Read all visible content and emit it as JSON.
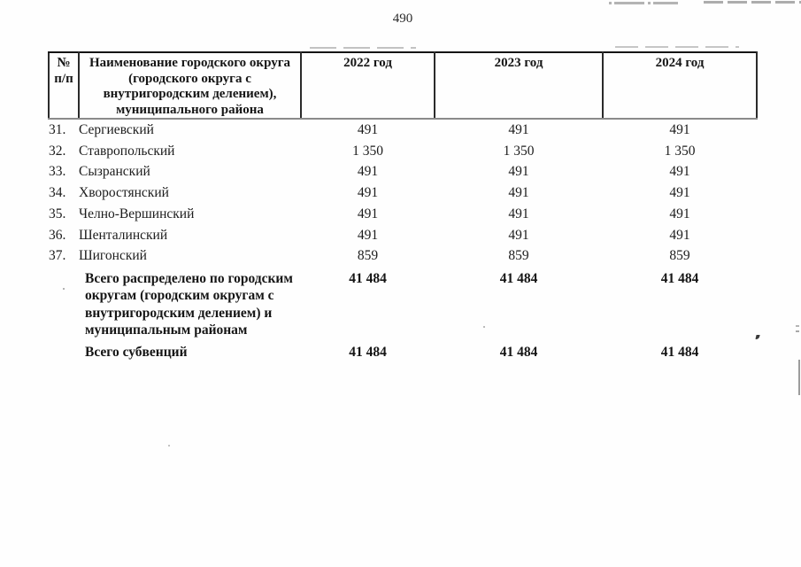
{
  "page_number": "490",
  "colors": {
    "ink": "#1c1c1c",
    "table_border": "#2b2b2b",
    "header_underline": "#8a8a8a",
    "scan_artifact_gray": "#b0b0b0"
  },
  "table": {
    "header": {
      "col_num": "№\nп/п",
      "col_name": "Наименование городского округа\n(городского округа с\nвнутригородским делением),\nмуниципального района",
      "col_2022": "2022 год",
      "col_2023": "2023 год",
      "col_2024": "2024 год"
    },
    "rows": [
      {
        "num": "31.",
        "name": "Сергиевский",
        "y2022": "491",
        "y2023": "491",
        "y2024": "491"
      },
      {
        "num": "32.",
        "name": "Ставропольский",
        "y2022": "1 350",
        "y2023": "1 350",
        "y2024": "1 350"
      },
      {
        "num": "33.",
        "name": "Сызранский",
        "y2022": "491",
        "y2023": "491",
        "y2024": "491"
      },
      {
        "num": "34.",
        "name": "Хворостянский",
        "y2022": "491",
        "y2023": "491",
        "y2024": "491"
      },
      {
        "num": "35.",
        "name": "Челно-Вершинский",
        "y2022": "491",
        "y2023": "491",
        "y2024": "491"
      },
      {
        "num": "36.",
        "name": "Шенталинский",
        "y2022": "491",
        "y2023": "491",
        "y2024": "491"
      },
      {
        "num": "37.",
        "name": "Шигонский",
        "y2022": "859",
        "y2023": "859",
        "y2024": "859"
      }
    ],
    "totals": [
      {
        "label": "Всего распределено по городским\nокругам (городским округам с\nвнутригородским делением) и\nмуниципальным районам",
        "y2022": "41 484",
        "y2023": "41 484",
        "y2024": "41 484"
      },
      {
        "label": "Всего субвенций",
        "y2022": "41 484",
        "y2023": "41 484",
        "y2024": "41 484"
      }
    ]
  }
}
